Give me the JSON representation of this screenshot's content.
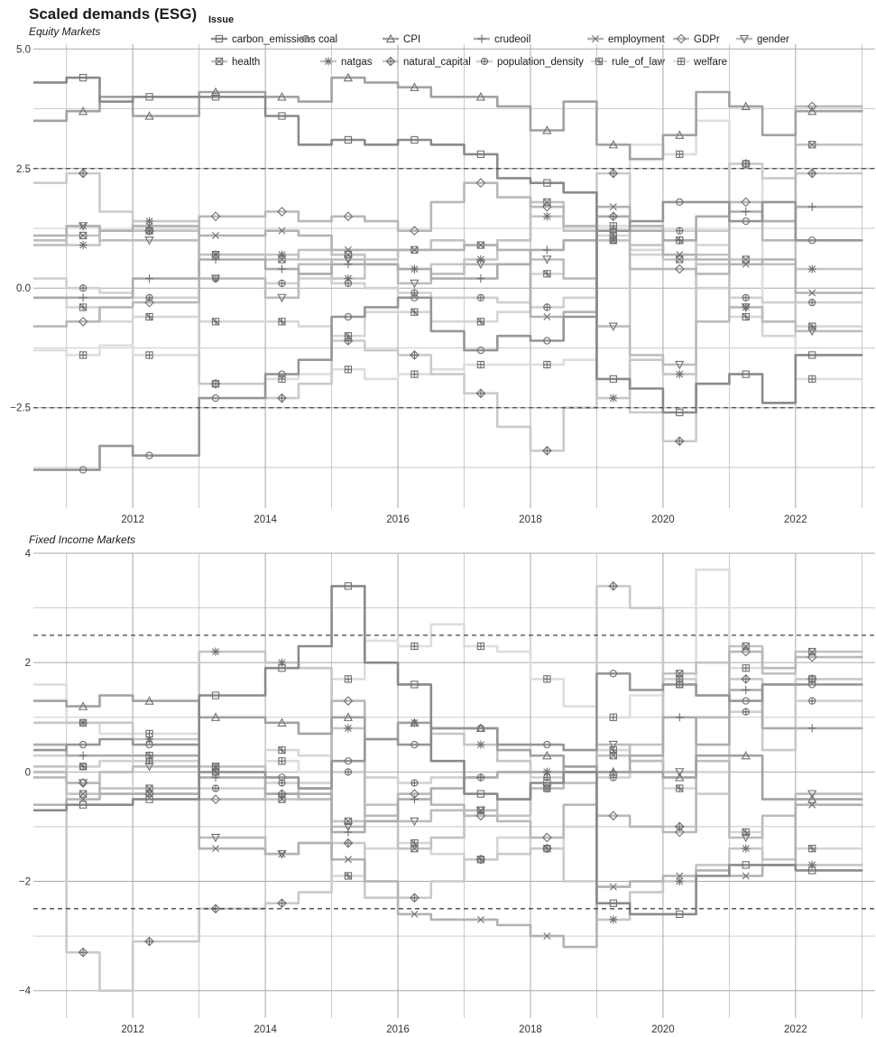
{
  "title": "Scaled demands (ESG)",
  "legend_title": "Issue",
  "chart_data": [
    {
      "type": "line",
      "subtitle": "Equity Markets",
      "xlim": [
        2010.5,
        2023.2
      ],
      "ylim": [
        -4.6,
        5.1
      ],
      "x_ticks": [
        2012,
        2014,
        2016,
        2018,
        2020,
        2022
      ],
      "y_ticks": [
        -2.5,
        0.0,
        2.5,
        5.0
      ],
      "y_tick_labels": [
        "−2.5",
        "0.0",
        "2.5",
        "5.0"
      ],
      "reference_lines": [
        2.5,
        -2.5
      ],
      "grid": true,
      "x": [
        2010.75,
        2011.25,
        2011.75,
        2012.25,
        2012.75,
        2013.25,
        2013.75,
        2014.25,
        2014.75,
        2015.25,
        2015.75,
        2016.25,
        2016.75,
        2017.25,
        2017.75,
        2018.25,
        2018.75,
        2019.25,
        2019.75,
        2020.25,
        2020.75,
        2021.25,
        2021.75,
        2022.25,
        2022.75
      ],
      "series": [
        {
          "name": "carbon_emissions",
          "values": [
            4.3,
            4.4,
            3.9,
            4.0,
            4.0,
            4.0,
            4.0,
            3.6,
            3.0,
            3.1,
            3.0,
            3.1,
            3.0,
            2.8,
            2.3,
            2.2,
            2.0,
            -1.9,
            -2.1,
            -2.6,
            -2.0,
            -1.8,
            -2.4,
            -1.4,
            -1.4
          ]
        },
        {
          "name": "coal",
          "values": [
            -3.8,
            -3.8,
            -3.3,
            -3.5,
            -3.5,
            -2.3,
            -2.3,
            -1.8,
            -1.5,
            -0.6,
            -0.4,
            -0.2,
            -0.9,
            -1.3,
            -1.0,
            -1.1,
            -0.6,
            1.2,
            1.4,
            1.8,
            1.8,
            1.4,
            1.8,
            1.0,
            1.0
          ]
        },
        {
          "name": "CPI",
          "values": [
            3.5,
            3.7,
            4.0,
            3.6,
            3.6,
            4.1,
            4.1,
            4.0,
            3.9,
            4.4,
            4.3,
            4.2,
            4.0,
            4.0,
            3.8,
            3.3,
            3.9,
            3.0,
            2.7,
            3.2,
            4.1,
            3.8,
            3.2,
            3.7,
            3.7
          ]
        },
        {
          "name": "crudeoil",
          "values": [
            -0.2,
            -0.2,
            -0.2,
            0.2,
            0.2,
            0.6,
            0.6,
            0.4,
            0.3,
            0.5,
            0.5,
            0.4,
            0.2,
            0.2,
            0.5,
            0.8,
            1.0,
            1.5,
            1.2,
            1.0,
            1.5,
            1.6,
            1.4,
            1.7,
            1.7
          ]
        },
        {
          "name": "employment",
          "values": [
            1.1,
            1.3,
            1.2,
            1.3,
            1.3,
            1.1,
            1.1,
            1.2,
            1.1,
            0.8,
            0.8,
            0.8,
            0.8,
            0.9,
            0.8,
            -0.6,
            -0.5,
            1.7,
            1.3,
            0.7,
            0.6,
            0.5,
            0.6,
            -0.1,
            -0.1
          ]
        },
        {
          "name": "GDPr",
          "values": [
            -0.8,
            -0.7,
            -0.4,
            -0.3,
            -0.3,
            1.5,
            1.5,
            1.6,
            1.4,
            1.5,
            1.4,
            1.2,
            1.8,
            2.2,
            1.9,
            1.7,
            1.3,
            1.5,
            0.4,
            0.4,
            0.3,
            1.8,
            1.0,
            3.8,
            3.8
          ]
        },
        {
          "name": "gender",
          "values": [
            1.0,
            1.3,
            1.0,
            1.0,
            1.0,
            0.2,
            0.2,
            -0.2,
            0.5,
            0.6,
            0.5,
            0.1,
            0.3,
            0.5,
            0.5,
            0.6,
            0.2,
            -0.8,
            -1.4,
            -1.6,
            -0.7,
            -0.4,
            -0.7,
            -0.9,
            -0.9
          ]
        },
        {
          "name": "health",
          "values": [
            0.9,
            1.1,
            1.2,
            1.2,
            1.2,
            0.7,
            0.7,
            0.6,
            0.8,
            0.7,
            0.6,
            0.8,
            1.0,
            0.9,
            1.0,
            1.8,
            1.2,
            1.0,
            0.9,
            0.6,
            0.7,
            0.6,
            0.5,
            3.0,
            3.0
          ]
        },
        {
          "name": "natgas",
          "values": [
            0.9,
            0.9,
            1.2,
            1.4,
            1.4,
            0.7,
            0.7,
            0.7,
            0.6,
            0.2,
            0.5,
            0.4,
            0.5,
            0.6,
            1.0,
            1.5,
            1.3,
            -2.3,
            -1.5,
            -1.8,
            0.5,
            -0.4,
            -0.7,
            0.4,
            0.4
          ]
        },
        {
          "name": "natural_capital",
          "values": [
            2.2,
            2.4,
            1.6,
            1.2,
            1.2,
            -2.0,
            -2.0,
            -2.3,
            -2.0,
            -1.1,
            -1.3,
            -1.4,
            -1.8,
            -2.2,
            -2.9,
            -3.4,
            -2.5,
            2.4,
            -2.6,
            -3.2,
            1.2,
            2.6,
            2.3,
            2.4,
            2.4
          ]
        },
        {
          "name": "population_density",
          "values": [
            0.2,
            0.0,
            -0.1,
            -0.2,
            -0.2,
            0.2,
            0.2,
            0.1,
            0.2,
            0.1,
            0.0,
            -0.1,
            -0.2,
            -0.2,
            -0.3,
            -0.4,
            -0.2,
            1.0,
            0.7,
            1.2,
            0.0,
            -0.2,
            -0.3,
            -0.3,
            -0.3
          ]
        },
        {
          "name": "rule_of_law",
          "values": [
            -0.2,
            -0.4,
            -0.7,
            -0.6,
            -0.6,
            -0.7,
            -0.7,
            -0.7,
            -0.8,
            -1.0,
            -0.5,
            -0.5,
            -0.7,
            -0.7,
            -0.5,
            0.3,
            0.2,
            1.1,
            0.8,
            1.0,
            0.9,
            -0.6,
            -1.0,
            -0.8,
            -0.8
          ]
        },
        {
          "name": "welfare",
          "values": [
            -1.3,
            -1.4,
            -1.2,
            -1.4,
            -1.4,
            -2.0,
            -2.0,
            -1.9,
            -1.8,
            -1.7,
            -1.9,
            -1.8,
            -1.7,
            -1.6,
            -1.6,
            -1.6,
            -1.5,
            1.3,
            3.0,
            2.8,
            3.5,
            2.6,
            -1.0,
            -1.9,
            -1.9
          ]
        }
      ]
    },
    {
      "type": "line",
      "subtitle": "Fixed Income Markets",
      "xlim": [
        2010.5,
        2023.2
      ],
      "ylim": [
        -4.5,
        4.0
      ],
      "x_ticks": [
        2012,
        2014,
        2016,
        2018,
        2020,
        2022
      ],
      "y_ticks": [
        -4,
        -2,
        0,
        2,
        4
      ],
      "y_tick_labels": [
        "−4",
        "−2",
        "0",
        "2",
        "4"
      ],
      "reference_lines": [
        2.5,
        -2.5
      ],
      "grid": true,
      "x": [
        2010.75,
        2011.25,
        2011.75,
        2012.25,
        2012.75,
        2013.25,
        2013.75,
        2014.25,
        2014.75,
        2015.25,
        2015.75,
        2016.25,
        2016.75,
        2017.25,
        2017.75,
        2018.25,
        2018.75,
        2019.25,
        2019.75,
        2020.25,
        2020.75,
        2021.25,
        2021.75,
        2022.25,
        2022.75
      ],
      "series": [
        {
          "name": "carbon_emissions",
          "values": [
            -0.7,
            -0.6,
            -0.6,
            -0.5,
            -0.5,
            1.4,
            1.4,
            1.9,
            2.3,
            3.4,
            2.0,
            1.6,
            0.2,
            -0.4,
            -0.5,
            -0.2,
            0.0,
            -2.4,
            -2.6,
            -2.6,
            -1.9,
            -1.7,
            -1.7,
            -1.8,
            -1.8
          ]
        },
        {
          "name": "coal",
          "values": [
            0.4,
            0.5,
            0.6,
            0.5,
            0.5,
            0.0,
            0.0,
            -0.1,
            -0.3,
            0.2,
            0.6,
            0.5,
            0.8,
            0.8,
            0.5,
            0.5,
            0.4,
            1.8,
            1.5,
            1.6,
            1.4,
            1.3,
            1.6,
            1.6,
            1.6
          ]
        },
        {
          "name": "CPI",
          "values": [
            1.3,
            1.2,
            1.4,
            1.3,
            1.3,
            1.0,
            1.0,
            0.9,
            0.7,
            1.0,
            0.6,
            0.9,
            0.8,
            0.8,
            0.4,
            0.3,
            0.1,
            0.0,
            0.0,
            -0.1,
            0.3,
            0.3,
            -0.5,
            -0.5,
            -0.5
          ]
        },
        {
          "name": "crudeoil",
          "values": [
            0.5,
            0.3,
            0.3,
            0.3,
            0.3,
            -0.1,
            -0.1,
            -0.4,
            -0.4,
            -1.1,
            -0.9,
            -0.5,
            -0.3,
            -0.1,
            0.0,
            0.0,
            0.1,
            0.0,
            0.3,
            1.0,
            0.5,
            1.5,
            0.8,
            0.8,
            0.8
          ]
        },
        {
          "name": "employment",
          "values": [
            -0.6,
            -0.5,
            -0.4,
            -0.4,
            -0.4,
            -1.4,
            -1.4,
            -1.5,
            -1.3,
            -1.6,
            -2.0,
            -2.6,
            -2.7,
            -2.7,
            -2.8,
            -3.0,
            -3.2,
            -2.1,
            -2.0,
            -1.9,
            -1.8,
            -1.9,
            -1.7,
            -0.6,
            -0.6
          ]
        },
        {
          "name": "GDPr",
          "values": [
            -0.1,
            -0.2,
            -0.4,
            -0.4,
            -0.4,
            -0.5,
            -0.5,
            -0.4,
            -0.5,
            1.3,
            -0.8,
            -0.4,
            -0.6,
            -0.8,
            -0.9,
            -1.2,
            -0.6,
            -0.8,
            -1.0,
            -1.1,
            1.0,
            2.2,
            1.9,
            2.1,
            2.1
          ]
        },
        {
          "name": "gender",
          "values": [
            0.0,
            -0.2,
            0.0,
            0.1,
            0.1,
            -1.2,
            -1.2,
            -1.5,
            -1.3,
            -1.0,
            -0.9,
            -0.9,
            -0.7,
            -0.7,
            -0.5,
            -0.3,
            -0.2,
            0.5,
            0.2,
            0.0,
            0.2,
            -1.2,
            -0.8,
            -0.4,
            -0.4
          ]
        },
        {
          "name": "health",
          "values": [
            0.1,
            -0.4,
            -0.3,
            -0.3,
            -0.3,
            0.1,
            0.1,
            -0.5,
            -0.3,
            -0.9,
            -0.6,
            -1.4,
            -1.2,
            -0.7,
            -0.8,
            -0.3,
            -0.2,
            0.3,
            0.5,
            1.8,
            2.0,
            2.3,
            1.8,
            2.2,
            2.2
          ]
        },
        {
          "name": "natgas",
          "values": [
            0.9,
            0.9,
            0.9,
            0.6,
            0.6,
            2.2,
            2.2,
            2.0,
            1.9,
            0.8,
            0.6,
            0.9,
            0.7,
            0.5,
            0.2,
            0.0,
            0.1,
            -2.7,
            -2.2,
            -2.0,
            -1.7,
            -1.4,
            -1.6,
            -1.7,
            -1.7
          ]
        },
        {
          "name": "natural_capital",
          "values": [
            0.0,
            -3.3,
            -4.0,
            -3.1,
            -3.1,
            -2.5,
            -2.5,
            -2.4,
            -2.2,
            -1.3,
            -2.3,
            -2.3,
            -2.0,
            -1.6,
            -1.5,
            -1.4,
            -2.0,
            3.4,
            3.0,
            -1.0,
            -0.4,
            1.7,
            0.4,
            1.7,
            1.7
          ]
        },
        {
          "name": "population_density",
          "values": [
            0.3,
            0.1,
            0.2,
            0.2,
            0.2,
            -0.3,
            -0.3,
            -0.2,
            -0.2,
            0.0,
            -0.1,
            -0.2,
            -0.1,
            -0.1,
            0.0,
            -0.1,
            0.0,
            -0.1,
            0.2,
            1.7,
            1.4,
            1.1,
            1.6,
            1.3,
            1.3
          ]
        },
        {
          "name": "rule_of_law",
          "values": [
            0.5,
            0.1,
            0.2,
            0.3,
            0.3,
            0.0,
            0.0,
            0.4,
            0.3,
            -1.9,
            -1.4,
            -1.3,
            -1.5,
            -1.6,
            -1.2,
            -1.4,
            -1.0,
            0.4,
            0.2,
            -0.3,
            0.0,
            -1.1,
            -1.7,
            -1.4,
            -1.4
          ]
        },
        {
          "name": "welfare",
          "values": [
            1.6,
            0.9,
            0.7,
            0.7,
            0.7,
            0.1,
            0.1,
            0.2,
            0.0,
            1.7,
            2.4,
            2.3,
            2.7,
            2.3,
            2.2,
            1.7,
            1.2,
            1.0,
            1.4,
            1.6,
            3.7,
            1.9,
            1.8,
            1.7,
            1.7
          ]
        }
      ]
    }
  ],
  "series_styles": [
    {
      "name": "carbon_emissions",
      "color": "#8a8a8a",
      "marker": "square"
    },
    {
      "name": "coal",
      "color": "#969696",
      "marker": "circle"
    },
    {
      "name": "CPI",
      "color": "#a2a2a2",
      "marker": "triangle"
    },
    {
      "name": "crudeoil",
      "color": "#acacac",
      "marker": "plus"
    },
    {
      "name": "employment",
      "color": "#b2b2b2",
      "marker": "x"
    },
    {
      "name": "GDPr",
      "color": "#b8b8b8",
      "marker": "diamond"
    },
    {
      "name": "gender",
      "color": "#bcbcbc",
      "marker": "triangle-down"
    },
    {
      "name": "health",
      "color": "#c2c2c2",
      "marker": "square-x"
    },
    {
      "name": "natgas",
      "color": "#c6c6c6",
      "marker": "asterisk"
    },
    {
      "name": "natural_capital",
      "color": "#cacaca",
      "marker": "diamond-plus"
    },
    {
      "name": "population_density",
      "color": "#d0d0d0",
      "marker": "circle-plus"
    },
    {
      "name": "rule_of_law",
      "color": "#d6d6d6",
      "marker": "square-star"
    },
    {
      "name": "welfare",
      "color": "#dedede",
      "marker": "square-plus"
    }
  ]
}
